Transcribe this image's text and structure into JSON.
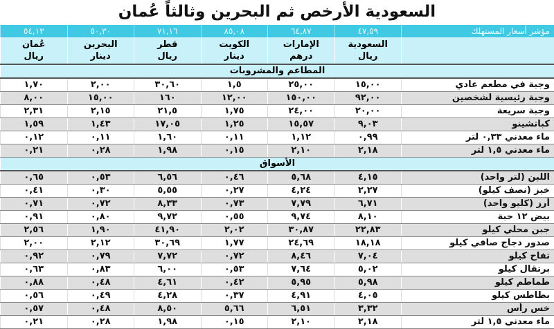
{
  "title": "السعودية الأرخص ثم البحرين وثالثاً عُمان",
  "index_row": {
    "label": "مؤشر أسعار المستهلك",
    "values": [
      "٤٧,٥٩",
      "٦٤,٨٧",
      "٨٥,٠٨",
      "٧١,١٦",
      "٥٠,٣٠",
      "٥٤,١٣"
    ]
  },
  "countries": [
    {
      "name": "السعودية",
      "currency": "ريال"
    },
    {
      "name": "الإمارات",
      "currency": "درهم"
    },
    {
      "name": "الكويت",
      "currency": "دينار"
    },
    {
      "name": "قطر",
      "currency": "ريال"
    },
    {
      "name": "البحرين",
      "currency": "دينار"
    },
    {
      "name": "عُمان",
      "currency": "ريال"
    }
  ],
  "sections": [
    {
      "title": "المطاعم والمشروبات",
      "rows": [
        {
          "item": "وجبة في مطعم عادي",
          "values": [
            "١٥,٠٠",
            "٢٥,٠٠",
            "١,٥",
            "٣٠,٦٠",
            "٢,٠٠",
            "١,٧٠"
          ]
        },
        {
          "item": "وجبة رئيسية لشخصين",
          "values": [
            "٩٢,٠٠",
            "١٥٠,٠٠",
            "١٢,٠٠",
            "١٦٠",
            "١٥,٠٠",
            "٨,٠٠"
          ]
        },
        {
          "item": "وجبة سريعة",
          "values": [
            "٢٠,٠٠",
            "٢٤,٠٠",
            "١,٧٥",
            "٢١,٥",
            "٢,١٥",
            "٢,٣١"
          ]
        },
        {
          "item": "كباتشينو",
          "values": [
            "٩,٠٣",
            "١٥,٥٧",
            "١,٢٥",
            "١٧,٠٥",
            "١,٤٣",
            "١,٥٩"
          ]
        },
        {
          "item": "ماء معدني ٠,٣٣ لتر",
          "values": [
            "٠,٩٩",
            "١,١٢",
            "٠,١١",
            "١,٦٠",
            "٠,١١",
            "٠,١٢"
          ]
        },
        {
          "item": "ماء معدني ١,٥ لتر",
          "values": [
            "٢,١٨",
            "٢,١٠",
            "٠,١٥",
            "١,٩٨",
            "٠,٢٨",
            "٠,٢١"
          ]
        }
      ]
    },
    {
      "title": "الأسواق",
      "rows": [
        {
          "item": "اللبن (لتر واحد)",
          "values": [
            "٤,١٥",
            "٥,٦٨",
            "٠,٤٦",
            "٦,٥٦",
            "٠,٥٣",
            "٠,٦٥"
          ]
        },
        {
          "item": "خبز (نصف كيلو)",
          "values": [
            "٢,٢٧",
            "٤,٢٤",
            "٠,٢٧",
            "٥,٥٥",
            "٠,٣٠",
            "٠,٤١"
          ]
        },
        {
          "item": "أرز (كليو واحد)",
          "values": [
            "٦,٧١",
            "٧,٧٩",
            "٠,٧٣",
            "٨,٣٣",
            "٠,٧٢",
            "٠,٧١"
          ]
        },
        {
          "item": "بيض ١٢ حبة",
          "values": [
            "٨,١٠",
            "٩,٧٤",
            "٠,٥٥",
            "٩,٧٢",
            "٠,٨٠",
            "٠,٩١"
          ]
        },
        {
          "item": "جبن محلي كيلو",
          "values": [
            "٢٢,٨٣",
            "٣٠,٨٧",
            "٢,٠٢",
            "٤١,٩٠",
            "١,٩٠",
            "٢,٥٦"
          ]
        },
        {
          "item": "صدور دجاج صافي كيلو",
          "values": [
            "١٨,١٨",
            "٢٤,٦٩",
            "١,٧٧",
            "٣٠,٦٩",
            "٢,١٢",
            "٢,٠٠"
          ]
        },
        {
          "item": "تفاح كيلو",
          "values": [
            "٧,٠٤",
            "٨,٤٦",
            "٠,٧٢",
            "٧,٧٢",
            "٠,٧٩",
            "٠,٩٢"
          ]
        },
        {
          "item": "برتقال كيلو",
          "values": [
            "٥,٠٢",
            "٧,٦٤",
            "٠,٥٣",
            "٦,٠٠",
            "٠,٨٣",
            "٠,٦٣"
          ]
        },
        {
          "item": "طماطم كيلو",
          "values": [
            "٥,٩٨",
            "٥,٩٥",
            "٠,٤٢",
            "٤,٦١",
            "٠,٤٨",
            "٠,٨٨"
          ]
        },
        {
          "item": "بطاطس كيلو",
          "values": [
            "٤,٠٥",
            "٤,٩١",
            "٠,٣٧",
            "٤,٢٨",
            "٠,٤٩",
            "٠,٥٦"
          ]
        },
        {
          "item": "خس رأس",
          "values": [
            "٣,٣٢",
            "٦,٥١",
            "٥,٦٦",
            "٨,٥٠",
            "٠,٤٨",
            "٠,٥٧"
          ]
        },
        {
          "item": "ماء معدني ١,٥ لتر",
          "values": [
            "٢,١٨",
            "٢,١٠",
            "٠,١٥",
            "١,٩٨",
            "٠,٢٨",
            "٠,٢١"
          ]
        }
      ]
    }
  ],
  "colors": {
    "header_cyan": "#3fc9e2",
    "light_cyan": "#c9f1f9",
    "row_gray": "#dedede"
  }
}
